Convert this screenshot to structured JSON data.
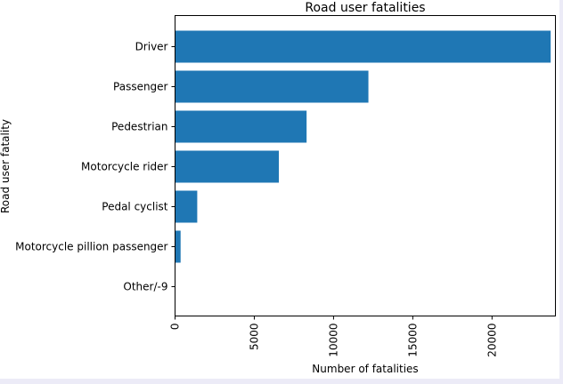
{
  "chart_data": {
    "type": "bar",
    "orientation": "horizontal",
    "title": "Road user fatalities",
    "xlabel": "Number of fatalities",
    "ylabel": "Road user fatality",
    "categories": [
      "Driver",
      "Passenger",
      "Pedestrian",
      "Motorcycle rider",
      "Pedal cyclist",
      "Motorcycle pillion passenger",
      "Other/-9"
    ],
    "values": [
      23700,
      12200,
      8300,
      6550,
      1400,
      350,
      10
    ],
    "xlim": [
      0,
      24000
    ],
    "xticks": [
      0,
      5000,
      10000,
      15000,
      20000
    ],
    "xtick_labels": [
      "0",
      "5000",
      "10000",
      "15000",
      "20000"
    ],
    "bar_color": "#1f77b4",
    "grid": false,
    "legend": null
  }
}
